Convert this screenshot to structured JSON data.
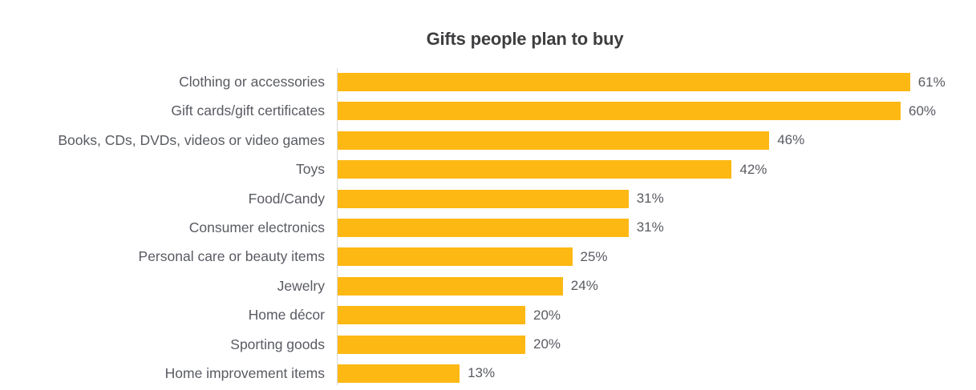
{
  "title": "Gifts people plan to buy",
  "colors": {
    "bar": "#FDB813",
    "label_text": "#595B62",
    "title_text": "#3E3E41",
    "axis_line": "#D8D8D8",
    "background": "#FFFFFF"
  },
  "chart_data": {
    "type": "bar",
    "orientation": "horizontal",
    "title": "Gifts people plan to buy",
    "categories": [
      "Clothing or accessories",
      "Gift cards/gift certificates",
      "Books, CDs, DVDs, videos or video games",
      "Toys",
      "Food/Candy",
      "Consumer electronics",
      "Personal care or beauty items",
      "Jewelry",
      "Home décor",
      "Sporting goods",
      "Home improvement items"
    ],
    "values": [
      61,
      60,
      46,
      42,
      31,
      31,
      25,
      24,
      20,
      20,
      13
    ],
    "value_labels": [
      "61%",
      "60%",
      "46%",
      "42%",
      "31%",
      "31%",
      "25%",
      "24%",
      "20%",
      "20%",
      "13%"
    ],
    "xlabel": "",
    "ylabel": "",
    "xlim": [
      0,
      63.2
    ],
    "grid": false,
    "legend": false,
    "data_labels": "outside-end"
  }
}
